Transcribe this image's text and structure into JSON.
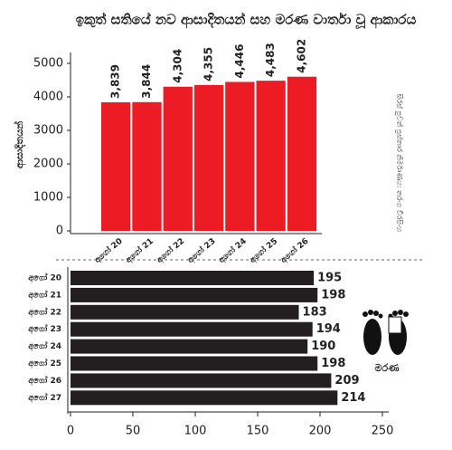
{
  "chart_data": [
    {
      "type": "bar",
      "title": "ඉකුත් සතියේ නව ආසාදිතයන් සහ මරණ වාර්තා වූ ආකාරය",
      "y_label": "ආසාදිතයන්",
      "annotation": "සිරස් පුවත් ප්‍රස්තාර නිර්මාණය: තරංග වීරසිංහ",
      "categories": [
        "අගෝ 20",
        "අගෝ 21",
        "අගෝ 22",
        "අගෝ 23",
        "අගෝ 24",
        "අගෝ 25",
        "අගෝ 26"
      ],
      "values": [
        3839,
        3844,
        4304,
        4355,
        4446,
        4483,
        4602
      ],
      "value_labels": [
        "3,839",
        "3,844",
        "4,304",
        "4,355",
        "4,446",
        "4,483",
        "4,602"
      ],
      "color": "#ed1c24",
      "ylim": [
        0,
        5000
      ],
      "yticks": [
        0,
        1000,
        2000,
        3000,
        4000,
        5000
      ]
    },
    {
      "type": "barh",
      "annotation": "මරණ",
      "categories": [
        "අගෝ 20",
        "අගෝ 21",
        "අගෝ 22",
        "අගෝ 23",
        "අගෝ 24",
        "අගෝ 25",
        "අගෝ 26",
        "අගෝ 27"
      ],
      "values": [
        195,
        198,
        183,
        194,
        190,
        198,
        209,
        214
      ],
      "color": "#231f20",
      "xlim": [
        0,
        250
      ],
      "xticks": [
        0,
        50,
        100,
        150,
        200,
        250
      ]
    }
  ]
}
